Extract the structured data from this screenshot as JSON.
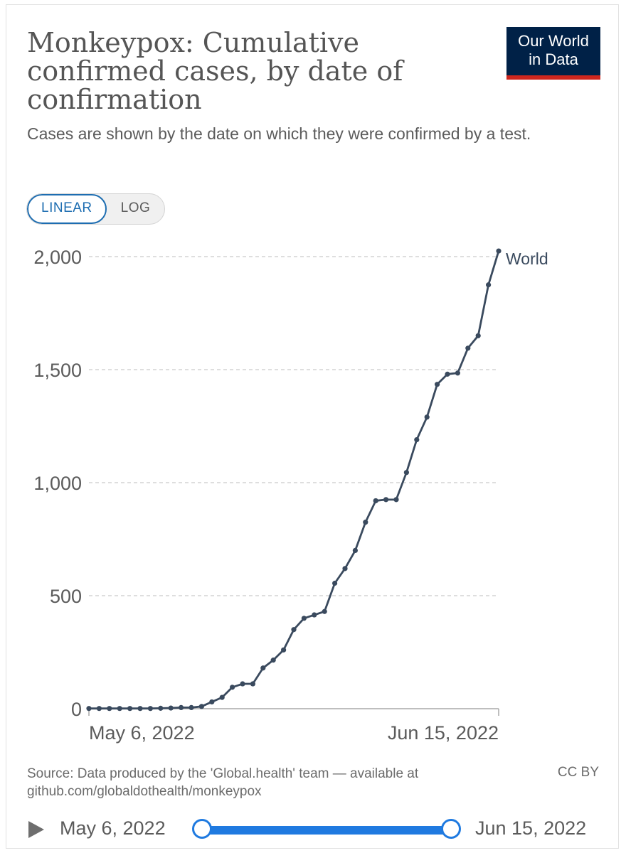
{
  "header": {
    "title": "Monkeypox: Cumulative confirmed cases, by date of confirmation",
    "subtitle": "Cases are shown by the date on which they were confirmed by a test.",
    "logo_line1": "Our World",
    "logo_line2": "in Data"
  },
  "colors": {
    "line": "#3a4a5e",
    "accent": "#1d6db1",
    "slider": "#1f7ae0",
    "logo_bg": "#002147",
    "logo_stripe": "#ce261e"
  },
  "toggle": {
    "linear_label": "LINEAR",
    "log_label": "LOG",
    "selected": "LINEAR"
  },
  "chart_data": {
    "type": "line",
    "title": "Monkeypox: Cumulative confirmed cases, by date of confirmation",
    "xlabel": "",
    "ylabel": "",
    "x_start_label": "May 6, 2022",
    "x_end_label": "Jun 15, 2022",
    "x": [
      0,
      1,
      2,
      3,
      4,
      5,
      6,
      7,
      8,
      9,
      10,
      11,
      12,
      13,
      14,
      15,
      16,
      17,
      18,
      19,
      20,
      21,
      22,
      23,
      24,
      25,
      26,
      27,
      28,
      29,
      30,
      31,
      32,
      33,
      34,
      35,
      36,
      37,
      38,
      39,
      40
    ],
    "ylim": [
      0,
      2000
    ],
    "yticks": [
      0,
      500,
      1000,
      1500,
      2000
    ],
    "ytick_labels": [
      "0",
      "500",
      "1,000",
      "1,500",
      "2,000"
    ],
    "grid": true,
    "series": [
      {
        "name": "World",
        "values": [
          1,
          1,
          1,
          1,
          1,
          1,
          1,
          2,
          3,
          5,
          5,
          10,
          30,
          50,
          95,
          110,
          110,
          180,
          215,
          260,
          350,
          400,
          415,
          430,
          555,
          620,
          700,
          825,
          920,
          925,
          925,
          1045,
          1190,
          1290,
          1435,
          1480,
          1485,
          1595,
          1650,
          1875,
          2025
        ]
      }
    ]
  },
  "footer": {
    "source": "Source: Data produced by the 'Global.health' team — available at github.com/globaldothealth/monkeypox",
    "license": "CC BY"
  },
  "timeline": {
    "start_label": "May 6, 2022",
    "end_label": "Jun 15, 2022"
  }
}
